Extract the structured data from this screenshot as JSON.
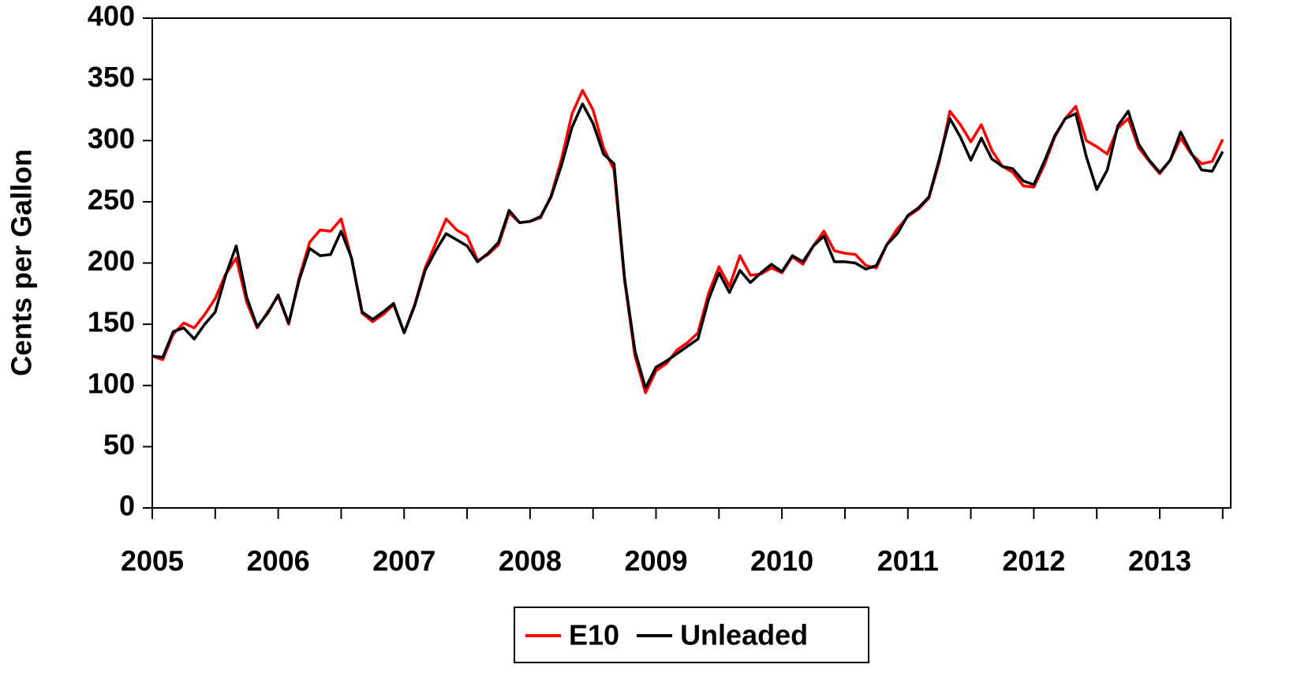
{
  "chart_data": {
    "type": "line",
    "y_label": "Cents per Gallon",
    "categories": [
      "2005",
      null,
      null,
      null,
      null,
      null,
      null,
      null,
      null,
      null,
      null,
      null,
      "2006",
      null,
      null,
      null,
      null,
      null,
      null,
      null,
      null,
      null,
      null,
      null,
      "2007",
      null,
      null,
      null,
      null,
      null,
      null,
      null,
      null,
      null,
      null,
      null,
      "2008",
      null,
      null,
      null,
      null,
      null,
      null,
      null,
      null,
      null,
      null,
      null,
      "2009",
      null,
      null,
      null,
      null,
      null,
      null,
      null,
      null,
      null,
      null,
      null,
      "2010",
      null,
      null,
      null,
      null,
      null,
      null,
      null,
      null,
      null,
      null,
      null,
      "2011",
      null,
      null,
      null,
      null,
      null,
      null,
      null,
      null,
      null,
      null,
      null,
      "2012",
      null,
      null,
      null,
      null,
      null,
      null,
      null,
      null,
      null,
      null,
      null,
      "2013",
      null,
      null,
      null,
      null,
      null,
      null
    ],
    "series": [
      {
        "name": "E10",
        "color": "#ff0000",
        "values": [
          124,
          121,
          142,
          151,
          147,
          158,
          171,
          191,
          204,
          168,
          147,
          160,
          173,
          150,
          188,
          217,
          227,
          226,
          236,
          203,
          159,
          152,
          158,
          166,
          143,
          166,
          196,
          216,
          236,
          227,
          222,
          202,
          207,
          215,
          241,
          233,
          234,
          237,
          255,
          285,
          322,
          341,
          325,
          294,
          276,
          186,
          124,
          94,
          112,
          118,
          129,
          135,
          143,
          175,
          197,
          181,
          206,
          190,
          191,
          196,
          192,
          205,
          199,
          214,
          226,
          210,
          208,
          207,
          198,
          196,
          215,
          228,
          238,
          244,
          253,
          283,
          324,
          313,
          299,
          313,
          292,
          279,
          274,
          263,
          262,
          280,
          303,
          318,
          328,
          300,
          295,
          289,
          310,
          318,
          294,
          283,
          273,
          284,
          302,
          289,
          281,
          283,
          301
        ]
      },
      {
        "name": "Unleaded",
        "color": "#000000",
        "values": [
          124,
          123,
          144,
          147,
          138,
          150,
          160,
          190,
          214,
          172,
          148,
          159,
          174,
          151,
          186,
          212,
          206,
          207,
          226,
          204,
          160,
          154,
          160,
          167,
          143,
          165,
          194,
          210,
          224,
          219,
          214,
          201,
          208,
          217,
          243,
          233,
          234,
          238,
          254,
          280,
          311,
          330,
          314,
          289,
          281,
          188,
          128,
          98,
          115,
          120,
          126,
          132,
          138,
          170,
          192,
          176,
          194,
          184,
          192,
          199,
          193,
          206,
          201,
          214,
          222,
          201,
          201,
          200,
          195,
          198,
          215,
          224,
          239,
          245,
          254,
          285,
          318,
          303,
          284,
          302,
          285,
          279,
          277,
          267,
          264,
          283,
          304,
          318,
          322,
          287,
          260,
          276,
          312,
          324,
          297,
          284,
          274,
          284,
          307,
          290,
          276,
          275,
          291
        ]
      }
    ],
    "ylim": [
      0,
      400
    ],
    "yticks": [
      0,
      50,
      100,
      150,
      200,
      250,
      300,
      350,
      400
    ],
    "grid": false,
    "legend": "bottom"
  }
}
